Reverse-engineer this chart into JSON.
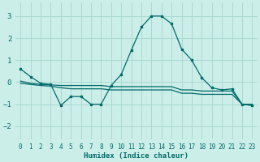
{
  "xlabel": "Humidex (Indice chaleur)",
  "bg_color": "#cceee8",
  "grid_color": "#aad8d2",
  "line_color": "#006b6b",
  "xlim": [
    -0.5,
    23.5
  ],
  "ylim": [
    -2.6,
    3.6
  ],
  "yticks": [
    -2,
    -1,
    0,
    1,
    2,
    3
  ],
  "xticks": [
    0,
    1,
    2,
    3,
    4,
    5,
    6,
    7,
    8,
    9,
    10,
    11,
    12,
    13,
    14,
    15,
    16,
    17,
    18,
    19,
    20,
    21,
    22,
    23
  ],
  "line1_x": [
    0,
    1,
    2,
    3,
    4,
    5,
    6,
    7,
    8,
    9,
    10,
    11,
    12,
    13,
    14,
    15,
    16,
    17,
    18,
    19,
    20,
    21,
    22,
    23
  ],
  "line1_y": [
    0.6,
    0.25,
    -0.05,
    -0.1,
    -1.05,
    -0.65,
    -0.65,
    -1.0,
    -1.0,
    -0.15,
    0.35,
    1.45,
    2.5,
    3.0,
    3.0,
    2.65,
    1.5,
    1.0,
    0.2,
    -0.25,
    -0.35,
    -0.3,
    -1.0,
    -1.05
  ],
  "line2_x": [
    0,
    1,
    2,
    3,
    4,
    5,
    6,
    7,
    8,
    9,
    10,
    11,
    12,
    13,
    14,
    15,
    16,
    17,
    18,
    19,
    20,
    21,
    22,
    23
  ],
  "line2_y": [
    0.05,
    -0.05,
    -0.1,
    -0.12,
    -0.15,
    -0.15,
    -0.15,
    -0.15,
    -0.15,
    -0.2,
    -0.2,
    -0.2,
    -0.2,
    -0.2,
    -0.2,
    -0.2,
    -0.35,
    -0.35,
    -0.4,
    -0.4,
    -0.4,
    -0.4,
    -1.0,
    -1.0
  ],
  "line3_x": [
    0,
    1,
    2,
    3,
    4,
    5,
    6,
    7,
    8,
    9,
    10,
    11,
    12,
    13,
    14,
    15,
    16,
    17,
    18,
    19,
    20,
    21,
    22,
    23
  ],
  "line3_y": [
    -0.05,
    -0.1,
    -0.15,
    -0.18,
    -0.25,
    -0.3,
    -0.3,
    -0.3,
    -0.3,
    -0.35,
    -0.35,
    -0.35,
    -0.35,
    -0.35,
    -0.35,
    -0.35,
    -0.5,
    -0.5,
    -0.55,
    -0.55,
    -0.55,
    -0.55,
    -1.0,
    -1.05
  ]
}
